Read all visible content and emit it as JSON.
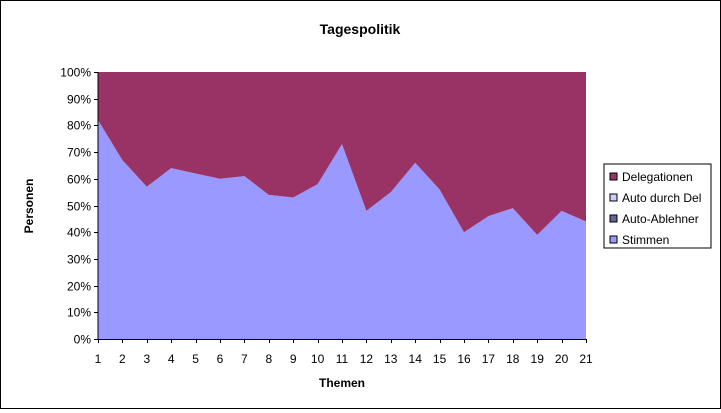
{
  "chart_data": {
    "type": "area",
    "stacking": "percent",
    "title": "Tagespolitik",
    "xlabel": "Themen",
    "ylabel": "Personen",
    "x": [
      1,
      2,
      3,
      4,
      5,
      6,
      7,
      8,
      9,
      10,
      11,
      12,
      13,
      14,
      15,
      16,
      17,
      18,
      19,
      20,
      21
    ],
    "ylim": [
      0,
      100
    ],
    "yticks": [
      "0%",
      "10%",
      "20%",
      "30%",
      "40%",
      "50%",
      "60%",
      "70%",
      "80%",
      "90%",
      "100%"
    ],
    "grid": false,
    "legend_position": "right",
    "series": [
      {
        "name": "Stimmen",
        "color": "#9999ff",
        "values": [
          82,
          67,
          57,
          64,
          62,
          60,
          61,
          54,
          53,
          58,
          73,
          48,
          55,
          66,
          56,
          40,
          46,
          49,
          39,
          48,
          44
        ]
      },
      {
        "name": "Auto-Ablehner",
        "color": "#666699",
        "values": [
          0,
          0,
          0,
          0,
          0,
          0,
          0,
          0,
          0,
          0,
          0,
          0,
          0,
          0,
          0,
          0,
          0,
          0,
          0,
          0,
          0
        ]
      },
      {
        "name": "Auto durch Del",
        "color": "#ccccff",
        "values": [
          0,
          0,
          0,
          0,
          0,
          0,
          0,
          0,
          0,
          0,
          0,
          0,
          0,
          0,
          0,
          0,
          0,
          0,
          0,
          0,
          0
        ]
      },
      {
        "name": "Delegationen",
        "color": "#993366",
        "values": [
          18,
          33,
          43,
          36,
          38,
          40,
          39,
          46,
          47,
          42,
          27,
          52,
          45,
          34,
          44,
          60,
          54,
          51,
          61,
          52,
          56
        ]
      }
    ],
    "legend_order": [
      "Delegationen",
      "Auto durch Del",
      "Auto-Ablehner",
      "Stimmen"
    ]
  }
}
